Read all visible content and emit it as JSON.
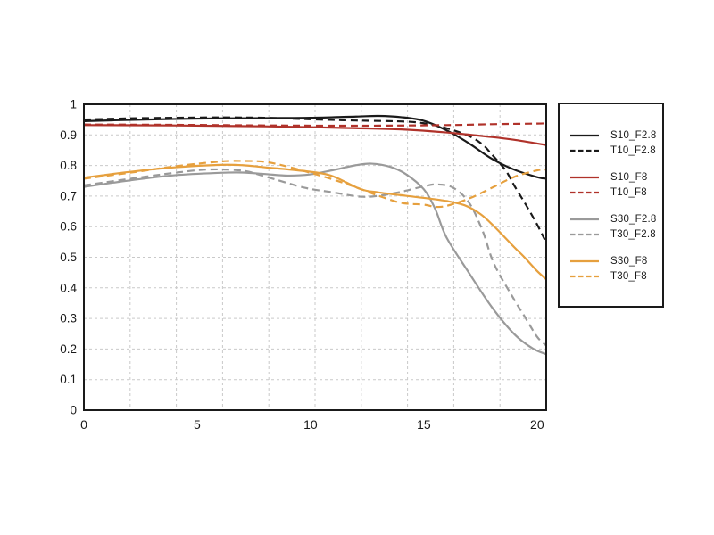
{
  "page": {
    "background": "#ffffff"
  },
  "chart_data": {
    "type": "line",
    "title": "",
    "xlabel": "",
    "ylabel": "",
    "xlim": [
      0,
      20.4
    ],
    "ylim": [
      0,
      1
    ],
    "x_tick_values": [
      0,
      5,
      10,
      15,
      20
    ],
    "x_tick_labels": [
      "0",
      "5",
      "10",
      "15",
      "20"
    ],
    "y_tick_values": [
      0,
      0.1,
      0.2,
      0.3,
      0.4,
      0.5,
      0.6,
      0.7,
      0.8,
      0.9,
      1
    ],
    "y_tick_labels": [
      "0",
      "0.1",
      "0.2",
      "0.3",
      "0.4",
      "0.5",
      "0.6",
      "0.7",
      "0.8",
      "0.9",
      "1"
    ],
    "grid": {
      "on": true,
      "vertical_divisions": 10,
      "horizontal_step": 0.1,
      "color": "#c9c9c9",
      "style": "dashed"
    },
    "axis_color": "#1a1a1a",
    "legend": {
      "position": "right",
      "groups": [
        [
          "S10_F2.8",
          "T10_F2.8"
        ],
        [
          "S10_F8",
          "T10_F8"
        ],
        [
          "S30_F2.8",
          "T30_F2.8"
        ],
        [
          "S30_F8",
          "T30_F8"
        ]
      ]
    },
    "series": [
      {
        "name": "S10_F2.8",
        "color": "#1a1a1a",
        "style": "solid",
        "points": [
          [
            0,
            0.945
          ],
          [
            2,
            0.949
          ],
          [
            4,
            0.952
          ],
          [
            6,
            0.954
          ],
          [
            8,
            0.955
          ],
          [
            10,
            0.956
          ],
          [
            12,
            0.96
          ],
          [
            13,
            0.962
          ],
          [
            14,
            0.958
          ],
          [
            15,
            0.946
          ],
          [
            16,
            0.915
          ],
          [
            17,
            0.872
          ],
          [
            18,
            0.822
          ],
          [
            19,
            0.786
          ],
          [
            20,
            0.762
          ],
          [
            20.4,
            0.757
          ]
        ]
      },
      {
        "name": "T10_F2.8",
        "color": "#1a1a1a",
        "style": "dashed",
        "points": [
          [
            0,
            0.95
          ],
          [
            2,
            0.954
          ],
          [
            4,
            0.956
          ],
          [
            6,
            0.957
          ],
          [
            8,
            0.956
          ],
          [
            10,
            0.951
          ],
          [
            12,
            0.947
          ],
          [
            14,
            0.944
          ],
          [
            15,
            0.938
          ],
          [
            16,
            0.922
          ],
          [
            17,
            0.896
          ],
          [
            17.6,
            0.868
          ],
          [
            18,
            0.836
          ],
          [
            18.6,
            0.785
          ],
          [
            19,
            0.733
          ],
          [
            19.5,
            0.672
          ],
          [
            20,
            0.607
          ],
          [
            20.4,
            0.548
          ]
        ]
      },
      {
        "name": "S10_F8",
        "color": "#b0322a",
        "style": "solid",
        "points": [
          [
            0,
            0.932
          ],
          [
            4,
            0.931
          ],
          [
            8,
            0.928
          ],
          [
            12,
            0.922
          ],
          [
            14,
            0.918
          ],
          [
            16,
            0.908
          ],
          [
            18,
            0.893
          ],
          [
            19,
            0.884
          ],
          [
            20,
            0.872
          ],
          [
            20.4,
            0.867
          ]
        ]
      },
      {
        "name": "T10_F8",
        "color": "#b0322a",
        "style": "dashed",
        "points": [
          [
            0,
            0.934
          ],
          [
            4,
            0.933
          ],
          [
            8,
            0.931
          ],
          [
            12,
            0.93
          ],
          [
            16,
            0.932
          ],
          [
            18,
            0.935
          ],
          [
            20,
            0.937
          ],
          [
            20.4,
            0.938
          ]
        ]
      },
      {
        "name": "S30_F2.8",
        "color": "#9a9a9a",
        "style": "solid",
        "points": [
          [
            0,
            0.73
          ],
          [
            2,
            0.751
          ],
          [
            4,
            0.768
          ],
          [
            6,
            0.776
          ],
          [
            7,
            0.777
          ],
          [
            8,
            0.772
          ],
          [
            9,
            0.767
          ],
          [
            10,
            0.771
          ],
          [
            11,
            0.785
          ],
          [
            12,
            0.801
          ],
          [
            12.7,
            0.806
          ],
          [
            13.5,
            0.796
          ],
          [
            14.2,
            0.772
          ],
          [
            15,
            0.722
          ],
          [
            15.5,
            0.658
          ],
          [
            16,
            0.565
          ],
          [
            17,
            0.448
          ],
          [
            18,
            0.337
          ],
          [
            19,
            0.248
          ],
          [
            19.8,
            0.202
          ],
          [
            20.4,
            0.183
          ]
        ]
      },
      {
        "name": "T30_F2.8",
        "color": "#9a9a9a",
        "style": "dashed",
        "points": [
          [
            0,
            0.735
          ],
          [
            2,
            0.756
          ],
          [
            4,
            0.776
          ],
          [
            5.5,
            0.787
          ],
          [
            7,
            0.783
          ],
          [
            8,
            0.764
          ],
          [
            9.7,
            0.728
          ],
          [
            11,
            0.712
          ],
          [
            12.2,
            0.698
          ],
          [
            13,
            0.701
          ],
          [
            14,
            0.714
          ],
          [
            15,
            0.732
          ],
          [
            15.6,
            0.738
          ],
          [
            16.3,
            0.727
          ],
          [
            17,
            0.678
          ],
          [
            17.6,
            0.585
          ],
          [
            18.1,
            0.478
          ],
          [
            19,
            0.36
          ],
          [
            19.4,
            0.312
          ],
          [
            20,
            0.24
          ],
          [
            20.4,
            0.212
          ]
        ]
      },
      {
        "name": "S30_F8",
        "color": "#e6a03e",
        "style": "solid",
        "points": [
          [
            0,
            0.76
          ],
          [
            2,
            0.779
          ],
          [
            4,
            0.794
          ],
          [
            6,
            0.802
          ],
          [
            7,
            0.801
          ],
          [
            8,
            0.794
          ],
          [
            9.7,
            0.782
          ],
          [
            10.9,
            0.767
          ],
          [
            12.2,
            0.723
          ],
          [
            13,
            0.712
          ],
          [
            14.2,
            0.701
          ],
          [
            15,
            0.694
          ],
          [
            16,
            0.684
          ],
          [
            16.8,
            0.67
          ],
          [
            17.5,
            0.641
          ],
          [
            18.1,
            0.601
          ],
          [
            19,
            0.532
          ],
          [
            19.4,
            0.503
          ],
          [
            20,
            0.455
          ],
          [
            20.4,
            0.428
          ]
        ]
      },
      {
        "name": "T30_F8",
        "color": "#e6a03e",
        "style": "dashed",
        "points": [
          [
            0,
            0.757
          ],
          [
            2,
            0.776
          ],
          [
            4,
            0.797
          ],
          [
            6,
            0.813
          ],
          [
            7,
            0.815
          ],
          [
            8,
            0.812
          ],
          [
            9,
            0.796
          ],
          [
            10,
            0.776
          ],
          [
            11,
            0.754
          ],
          [
            12,
            0.729
          ],
          [
            13,
            0.701
          ],
          [
            14,
            0.678
          ],
          [
            15,
            0.672
          ],
          [
            15.5,
            0.665
          ],
          [
            16,
            0.668
          ],
          [
            17,
            0.692
          ],
          [
            18,
            0.727
          ],
          [
            19,
            0.763
          ],
          [
            20,
            0.784
          ],
          [
            20.4,
            0.787
          ]
        ]
      }
    ]
  }
}
